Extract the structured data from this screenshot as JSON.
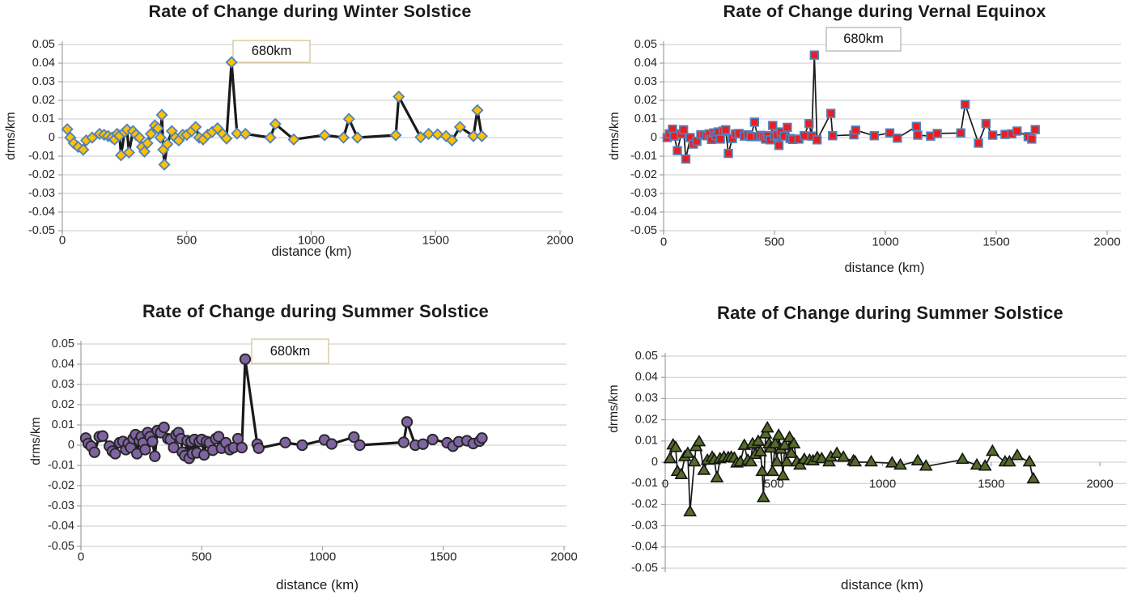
{
  "page": {
    "background": "#ffffff"
  },
  "chart_data": [
    {
      "id": "winter",
      "type": "line",
      "title": "Rate of Change during Winter Solstice",
      "xlabel": "distance (km)",
      "ylabel": "drms/km",
      "annotation": "680km",
      "annotation_at_km": 680,
      "xlim": [
        0,
        2000
      ],
      "ylim": [
        -0.05,
        0.05
      ],
      "x_ticks": [
        "0",
        "500",
        "1000",
        "1500",
        "2000"
      ],
      "y_ticks": [
        "0.05",
        "0.04",
        "0.03",
        "0.02",
        "0.01",
        "0",
        "-0.01",
        "-0.02",
        "-0.03",
        "-0.04",
        "-0.05"
      ],
      "grid": true,
      "legend": false,
      "marker": "diamond",
      "marker_fill": "#FFC000",
      "marker_stroke": "#4F81BD",
      "line_color": "#1a1a1a",
      "line_width": 3.2,
      "points": [
        [
          20,
          0.0045
        ],
        [
          32,
          0
        ],
        [
          46,
          -0.003
        ],
        [
          64,
          -0.005
        ],
        [
          84,
          -0.0065
        ],
        [
          96,
          -0.0015
        ],
        [
          120,
          0
        ],
        [
          150,
          0.002
        ],
        [
          168,
          0.0015
        ],
        [
          184,
          0.0008
        ],
        [
          200,
          0
        ],
        [
          210,
          -0.001
        ],
        [
          220,
          0.002
        ],
        [
          230,
          0.001
        ],
        [
          236,
          -0.0095
        ],
        [
          250,
          0.003
        ],
        [
          260,
          0.0043
        ],
        [
          268,
          -0.008
        ],
        [
          284,
          0.0035
        ],
        [
          296,
          0.0015
        ],
        [
          310,
          0
        ],
        [
          320,
          -0.005
        ],
        [
          330,
          -0.0075
        ],
        [
          342,
          -0.003
        ],
        [
          356,
          0.002
        ],
        [
          372,
          0.0065
        ],
        [
          384,
          0.005
        ],
        [
          394,
          0
        ],
        [
          400,
          0.0122
        ],
        [
          406,
          -0.0065
        ],
        [
          410,
          -0.0145
        ],
        [
          422,
          -0.0035
        ],
        [
          440,
          0.0035
        ],
        [
          454,
          0
        ],
        [
          468,
          -0.0015
        ],
        [
          484,
          0.0015
        ],
        [
          500,
          0.0015
        ],
        [
          520,
          0.0035
        ],
        [
          536,
          0.0057
        ],
        [
          550,
          0
        ],
        [
          566,
          -0.001
        ],
        [
          584,
          0.0015
        ],
        [
          602,
          0.003
        ],
        [
          624,
          0.005
        ],
        [
          644,
          0.002
        ],
        [
          660,
          -0.0005
        ],
        [
          680,
          0.0405
        ],
        [
          702,
          0.0022
        ],
        [
          736,
          0.002
        ],
        [
          836,
          0
        ],
        [
          856,
          0.0073
        ],
        [
          930,
          -0.001
        ],
        [
          1054,
          0.0013
        ],
        [
          1130,
          0
        ],
        [
          1152,
          0.01
        ],
        [
          1186,
          0
        ],
        [
          1340,
          0.0013
        ],
        [
          1352,
          0.022
        ],
        [
          1440,
          0.0002
        ],
        [
          1472,
          0.002
        ],
        [
          1508,
          0.0017
        ],
        [
          1542,
          0.0008
        ],
        [
          1566,
          -0.0015
        ],
        [
          1598,
          0.0057
        ],
        [
          1652,
          0.0008
        ],
        [
          1668,
          0.0147
        ],
        [
          1686,
          0.0008
        ]
      ]
    },
    {
      "id": "vernal",
      "type": "line",
      "title": "Rate of Change during Vernal Equinox",
      "xlabel": "distance (km)",
      "ylabel": "drms/km",
      "annotation": "680km",
      "annotation_at_km": 680,
      "xlim": [
        0,
        2000
      ],
      "ylim": [
        -0.05,
        0.05
      ],
      "x_ticks": [
        "0",
        "500",
        "1000",
        "1500",
        "2000"
      ],
      "y_ticks": [
        "0.05",
        "0.04",
        "0.03",
        "0.02",
        "0.01",
        "0",
        "-0.01",
        "-0.02",
        "-0.03",
        "-0.04",
        "-0.05"
      ],
      "grid": true,
      "legend": false,
      "marker": "square",
      "marker_fill": "#EE1C1C",
      "marker_stroke": "#4F81BD",
      "line_color": "#1a1a1a",
      "line_width": 1.7,
      "points": [
        [
          16,
          0
        ],
        [
          26,
          0.002
        ],
        [
          40,
          0.0045
        ],
        [
          48,
          0.0008
        ],
        [
          62,
          -0.007
        ],
        [
          80,
          0.002
        ],
        [
          90,
          0.0042
        ],
        [
          100,
          -0.0115
        ],
        [
          120,
          0
        ],
        [
          134,
          -0.0035
        ],
        [
          150,
          -0.002
        ],
        [
          168,
          0.0015
        ],
        [
          180,
          0.0015
        ],
        [
          194,
          0.001
        ],
        [
          206,
          0.002
        ],
        [
          216,
          -0.001
        ],
        [
          226,
          0.0025
        ],
        [
          236,
          0.001
        ],
        [
          246,
          0.003
        ],
        [
          256,
          -0.0008
        ],
        [
          268,
          0.0035
        ],
        [
          280,
          0.0042
        ],
        [
          292,
          -0.0085
        ],
        [
          310,
          -0.0005
        ],
        [
          324,
          0.002
        ],
        [
          340,
          0.0022
        ],
        [
          364,
          0.0008
        ],
        [
          380,
          0.0015
        ],
        [
          394,
          0.0005
        ],
        [
          410,
          0.0083
        ],
        [
          424,
          0.0005
        ],
        [
          438,
          0.0012
        ],
        [
          450,
          0.0005
        ],
        [
          460,
          -0.0008
        ],
        [
          470,
          0.001
        ],
        [
          480,
          -0.0012
        ],
        [
          492,
          0.0065
        ],
        [
          500,
          0.0008
        ],
        [
          512,
          0.0015
        ],
        [
          520,
          -0.0042
        ],
        [
          530,
          0.003
        ],
        [
          544,
          0.0008
        ],
        [
          558,
          0.0055
        ],
        [
          570,
          -0.0005
        ],
        [
          582,
          -0.001
        ],
        [
          610,
          -0.0008
        ],
        [
          634,
          0.001
        ],
        [
          656,
          0.0075
        ],
        [
          668,
          0.0008
        ],
        [
          680,
          0.0443
        ],
        [
          692,
          -0.0012
        ],
        [
          754,
          0.013
        ],
        [
          762,
          0.001
        ],
        [
          858,
          0.0015
        ],
        [
          866,
          0.004
        ],
        [
          950,
          0.001
        ],
        [
          1020,
          0.0025
        ],
        [
          1054,
          -0.0003
        ],
        [
          1140,
          0.006
        ],
        [
          1146,
          0.0013
        ],
        [
          1204,
          0.0008
        ],
        [
          1234,
          0.0022
        ],
        [
          1340,
          0.0025
        ],
        [
          1360,
          0.0178
        ],
        [
          1420,
          -0.003
        ],
        [
          1454,
          0.0075
        ],
        [
          1484,
          0.0013
        ],
        [
          1540,
          0.0017
        ],
        [
          1570,
          0.002
        ],
        [
          1594,
          0.0035
        ],
        [
          1644,
          0.0005
        ],
        [
          1660,
          -0.0008
        ],
        [
          1676,
          0.0043
        ]
      ]
    },
    {
      "id": "summer-circles",
      "type": "line",
      "title": "Rate of Change during Summer Solstice",
      "xlabel": "distance (km)",
      "ylabel": "drms/km",
      "annotation": "680km",
      "annotation_at_km": 680,
      "xlim": [
        0,
        2000
      ],
      "ylim": [
        -0.05,
        0.05
      ],
      "x_ticks": [
        "0",
        "500",
        "1000",
        "1500",
        "2000"
      ],
      "y_ticks": [
        "0.05",
        "0.04",
        "0.03",
        "0.02",
        "0.01",
        "0",
        "-0.01",
        "-0.02",
        "-0.03",
        "-0.04",
        "-0.05"
      ],
      "grid": true,
      "legend": false,
      "marker": "circle",
      "marker_fill": "#8064A2",
      "marker_stroke": "#262626",
      "line_color": "#1a1a1a",
      "line_width": 3.2,
      "points": [
        [
          20,
          0.0035
        ],
        [
          30,
          0.0008
        ],
        [
          42,
          -0.0005
        ],
        [
          56,
          -0.0035
        ],
        [
          76,
          0.0042
        ],
        [
          90,
          0.0045
        ],
        [
          118,
          -0.0005
        ],
        [
          130,
          -0.003
        ],
        [
          142,
          -0.0042
        ],
        [
          160,
          0.0012
        ],
        [
          174,
          0.0018
        ],
        [
          186,
          -0.0022
        ],
        [
          196,
          0.0008
        ],
        [
          206,
          -0.0012
        ],
        [
          216,
          0.0032
        ],
        [
          226,
          0.0052
        ],
        [
          232,
          -0.0042
        ],
        [
          242,
          0.0022
        ],
        [
          250,
          0.0042
        ],
        [
          258,
          0.0012
        ],
        [
          266,
          -0.0022
        ],
        [
          276,
          0.0062
        ],
        [
          286,
          0.0042
        ],
        [
          296,
          0.0018
        ],
        [
          306,
          -0.0055
        ],
        [
          316,
          0.0072
        ],
        [
          330,
          0.0062
        ],
        [
          344,
          0.0088
        ],
        [
          360,
          0.0032
        ],
        [
          370,
          0.0028
        ],
        [
          384,
          -0.0012
        ],
        [
          394,
          0.0052
        ],
        [
          404,
          0.0062
        ],
        [
          414,
          0.0032
        ],
        [
          420,
          -0.0035
        ],
        [
          430,
          -0.0052
        ],
        [
          440,
          0.0022
        ],
        [
          448,
          -0.0065
        ],
        [
          456,
          0.0018
        ],
        [
          462,
          -0.0042
        ],
        [
          470,
          0.0028
        ],
        [
          480,
          -0.0038
        ],
        [
          490,
          0.0018
        ],
        [
          500,
          0.0028
        ],
        [
          510,
          -0.0048
        ],
        [
          520,
          0.0018
        ],
        [
          532,
          0.0012
        ],
        [
          546,
          -0.0025
        ],
        [
          558,
          0.0032
        ],
        [
          570,
          0.0042
        ],
        [
          582,
          -0.0015
        ],
        [
          600,
          0.0012
        ],
        [
          616,
          -0.0022
        ],
        [
          632,
          -0.0012
        ],
        [
          650,
          0.0032
        ],
        [
          666,
          -0.0012
        ],
        [
          680,
          0.0425
        ],
        [
          730,
          0.0005
        ],
        [
          736,
          -0.0015
        ],
        [
          846,
          0.0013
        ],
        [
          916,
          0
        ],
        [
          1008,
          0.0026
        ],
        [
          1038,
          0.0006
        ],
        [
          1130,
          0.004
        ],
        [
          1154,
          0
        ],
        [
          1336,
          0.0014
        ],
        [
          1350,
          0.0115
        ],
        [
          1384,
          0
        ],
        [
          1416,
          0.0005
        ],
        [
          1456,
          0.0028
        ],
        [
          1516,
          0.0012
        ],
        [
          1540,
          -0.0005
        ],
        [
          1564,
          0.0017
        ],
        [
          1598,
          0.0022
        ],
        [
          1624,
          0.0008
        ],
        [
          1650,
          0.002
        ],
        [
          1660,
          0.0035
        ]
      ]
    },
    {
      "id": "summer-triangles",
      "type": "line",
      "title": "Rate of Change during Summer Solstice",
      "xlabel": "distance (km)",
      "ylabel": "drms/km",
      "xlim": [
        0,
        2000
      ],
      "ylim": [
        -0.05,
        0.05
      ],
      "x_ticks": [
        "0",
        "500",
        "1000",
        "1500",
        "2000"
      ],
      "y_ticks": [
        "0.05",
        "0.04",
        "0.03",
        "0.02",
        "0.01",
        "0",
        "-0.01",
        "-0.02",
        "-0.03",
        "-0.04",
        "-0.05"
      ],
      "grid": true,
      "legend": false,
      "x_labels_inside": true,
      "marker": "triangle",
      "marker_fill": "#556B2A",
      "marker_stroke": "#141414",
      "line_color": "#1a1a1a",
      "line_width": 1.7,
      "points": [
        [
          22,
          0.0015
        ],
        [
          36,
          0.008
        ],
        [
          48,
          0.0068
        ],
        [
          56,
          -0.0045
        ],
        [
          74,
          -0.006
        ],
        [
          90,
          0.0025
        ],
        [
          104,
          0.004
        ],
        [
          114,
          -0.0235
        ],
        [
          134,
          0
        ],
        [
          142,
          0.0072
        ],
        [
          156,
          0.0095
        ],
        [
          178,
          -0.004
        ],
        [
          194,
          0.0008
        ],
        [
          216,
          0.0022
        ],
        [
          226,
          0.001
        ],
        [
          238,
          -0.0075
        ],
        [
          252,
          0.0015
        ],
        [
          270,
          0.0022
        ],
        [
          290,
          0.002
        ],
        [
          304,
          0.0022
        ],
        [
          318,
          0.0018
        ],
        [
          330,
          -0.0005
        ],
        [
          346,
          0
        ],
        [
          364,
          0.0078
        ],
        [
          380,
          0.0008
        ],
        [
          394,
          0
        ],
        [
          402,
          0.0085
        ],
        [
          414,
          0.0035
        ],
        [
          428,
          0.0097
        ],
        [
          438,
          0.0048
        ],
        [
          446,
          -0.0045
        ],
        [
          452,
          -0.0168
        ],
        [
          462,
          0.0132
        ],
        [
          470,
          0.016
        ],
        [
          478,
          0.0085
        ],
        [
          486,
          0.0065
        ],
        [
          494,
          -0.0045
        ],
        [
          506,
          0.0085
        ],
        [
          514,
          0
        ],
        [
          522,
          0.0125
        ],
        [
          532,
          0.006
        ],
        [
          542,
          -0.0065
        ],
        [
          550,
          0.0078
        ],
        [
          560,
          0
        ],
        [
          572,
          0.0115
        ],
        [
          580,
          0.004
        ],
        [
          592,
          0.0085
        ],
        [
          606,
          0
        ],
        [
          620,
          -0.0015
        ],
        [
          640,
          0.0012
        ],
        [
          664,
          0.0008
        ],
        [
          680,
          0.0005
        ],
        [
          700,
          0.002
        ],
        [
          720,
          0.0015
        ],
        [
          754,
          0
        ],
        [
          762,
          0.0023
        ],
        [
          790,
          0.004
        ],
        [
          820,
          0.0022
        ],
        [
          866,
          0.0005
        ],
        [
          874,
          0
        ],
        [
          948,
          0
        ],
        [
          1044,
          -0.0005
        ],
        [
          1082,
          -0.0015
        ],
        [
          1162,
          0.0005
        ],
        [
          1200,
          -0.002
        ],
        [
          1368,
          0.0012
        ],
        [
          1434,
          -0.0015
        ],
        [
          1472,
          -0.002
        ],
        [
          1506,
          0.005
        ],
        [
          1564,
          0
        ],
        [
          1584,
          0
        ],
        [
          1620,
          0.003
        ],
        [
          1676,
          0
        ],
        [
          1694,
          -0.008
        ]
      ]
    }
  ],
  "style": {
    "gridline_color": "#c9c9c9",
    "axis_color": "#a0a0a0",
    "tick_label_color": "#262626",
    "annotation_border_tan": "#d8cda2",
    "annotation_border_gray": "#b5b5b5"
  }
}
